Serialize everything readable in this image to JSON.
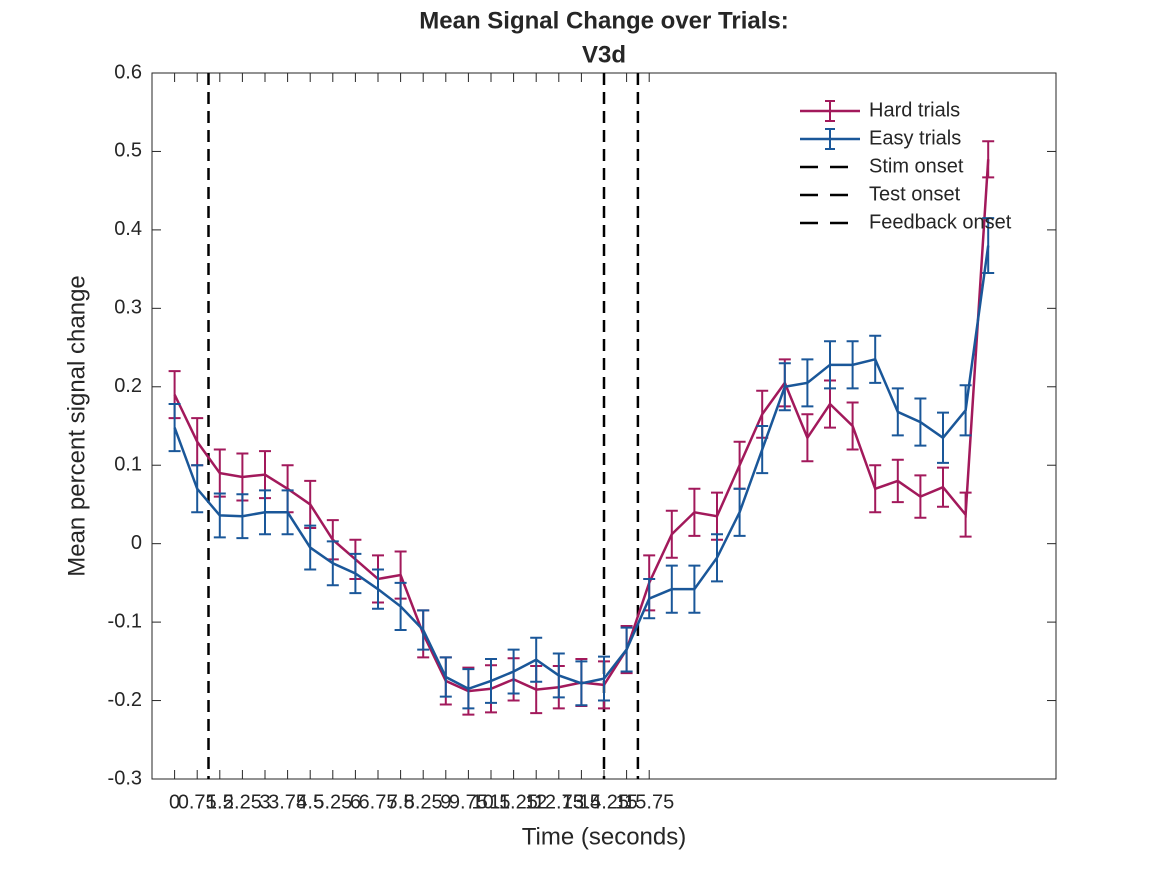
{
  "chart_data": {
    "type": "line",
    "title": [
      "Mean Signal Change over Trials:",
      "V3d"
    ],
    "xlabel": "Time (seconds)",
    "ylabel": "Mean percent signal change",
    "x": [
      0,
      0.75,
      1.5,
      2.25,
      3,
      3.75,
      4.5,
      5.25,
      6,
      6.75,
      7.5,
      8.25,
      9,
      9.75,
      10.5,
      11.25,
      12,
      12.75,
      13.5,
      14.25,
      15,
      15.75,
      16.5,
      17.25,
      18,
      18.75,
      19.5,
      20.25,
      21,
      21.75,
      22.5,
      23.25,
      24,
      24.75,
      25.5,
      26.25,
      27
    ],
    "series": [
      {
        "name": "Hard trials",
        "color": "#a2195b",
        "values": [
          0.19,
          0.13,
          0.09,
          0.085,
          0.088,
          0.07,
          0.05,
          0.005,
          -0.02,
          -0.045,
          -0.04,
          -0.115,
          -0.175,
          -0.188,
          -0.185,
          -0.173,
          -0.186,
          -0.183,
          -0.177,
          -0.18,
          -0.135,
          -0.05,
          0.012,
          0.04,
          0.035,
          0.1,
          0.165,
          0.205,
          0.135,
          0.178,
          0.15,
          0.07,
          0.08,
          0.06,
          0.072,
          0.037,
          0.49
        ],
        "errors": [
          0.03,
          0.03,
          0.03,
          0.03,
          0.03,
          0.03,
          0.03,
          0.025,
          0.025,
          0.03,
          0.03,
          0.03,
          0.03,
          0.03,
          0.03,
          0.027,
          0.03,
          0.027,
          0.03,
          0.03,
          0.03,
          0.035,
          0.03,
          0.03,
          0.03,
          0.03,
          0.03,
          0.03,
          0.03,
          0.03,
          0.03,
          0.03,
          0.027,
          0.027,
          0.025,
          0.028,
          0.023
        ]
      },
      {
        "name": "Easy trials",
        "color": "#1a5799",
        "values": [
          0.148,
          0.07,
          0.036,
          0.035,
          0.04,
          0.04,
          -0.005,
          -0.025,
          -0.038,
          -0.058,
          -0.08,
          -0.11,
          -0.17,
          -0.185,
          -0.175,
          -0.163,
          -0.148,
          -0.168,
          -0.178,
          -0.172,
          -0.135,
          -0.07,
          -0.058,
          -0.058,
          -0.018,
          0.04,
          0.12,
          0.2,
          0.205,
          0.228,
          0.228,
          0.235,
          0.168,
          0.155,
          0.135,
          0.17,
          0.38
        ],
        "errors": [
          0.03,
          0.03,
          0.028,
          0.028,
          0.028,
          0.028,
          0.028,
          0.028,
          0.025,
          0.025,
          0.03,
          0.025,
          0.025,
          0.025,
          0.028,
          0.028,
          0.028,
          0.028,
          0.028,
          0.028,
          0.028,
          0.025,
          0.03,
          0.03,
          0.03,
          0.03,
          0.03,
          0.03,
          0.03,
          0.03,
          0.03,
          0.03,
          0.03,
          0.03,
          0.032,
          0.032,
          0.035
        ]
      }
    ],
    "vlines": [
      {
        "name": "Stim onset",
        "x": 1.125,
        "color": "#000000"
      },
      {
        "name": "Test onset",
        "x": 14.25,
        "color": "#000000"
      },
      {
        "name": "Feedback onset",
        "x": 15.375,
        "color": "#000000"
      }
    ],
    "xlim": [
      -0.75,
      29.25
    ],
    "xticks": [
      0,
      0.75,
      1.5,
      2.25,
      3,
      3.75,
      4.5,
      5.25,
      6,
      6.75,
      7.5,
      8.25,
      9,
      9.75,
      10.5,
      11.25,
      12,
      12.75,
      13.5,
      14.25,
      15,
      15.75
    ],
    "ylim": [
      -0.3,
      0.6
    ],
    "yticks": [
      -0.3,
      -0.2,
      -0.1,
      0,
      0.1,
      0.2,
      0.3,
      0.4,
      0.5,
      0.6
    ],
    "grid": false,
    "legend": "top-right"
  }
}
